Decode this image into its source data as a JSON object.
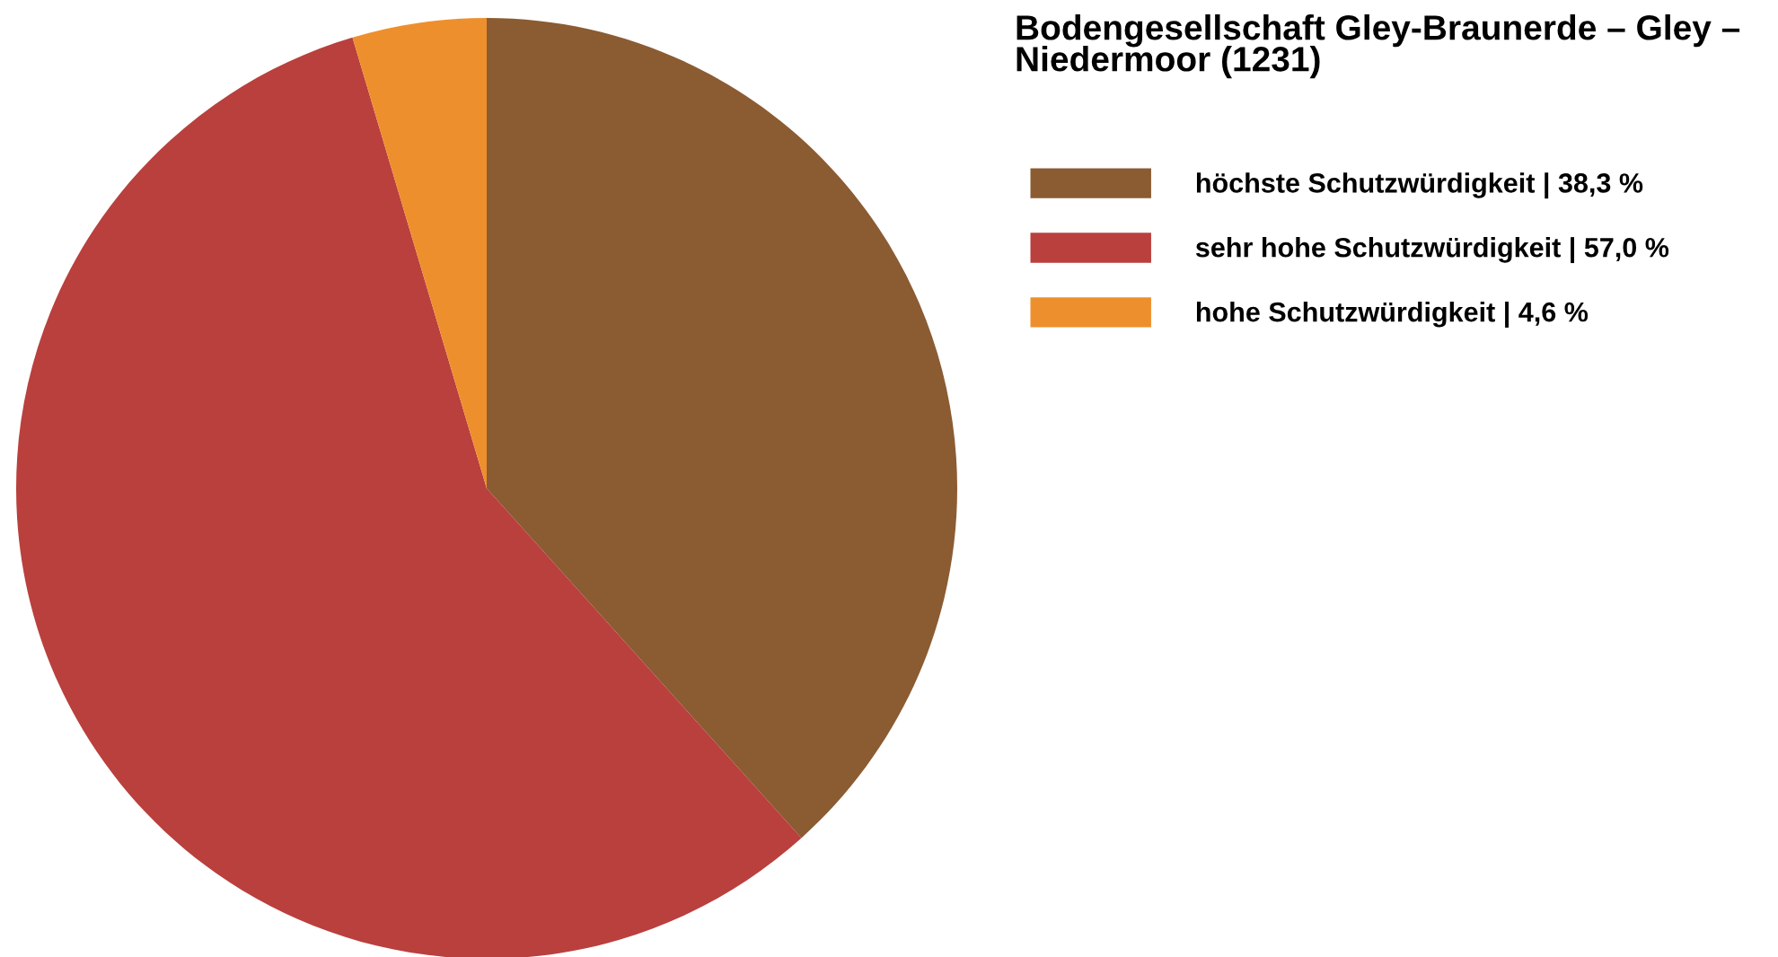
{
  "chart_data": {
    "type": "pie",
    "title": "Bodengesellschaft Gley-Braunerde – Gley – Niedermoor (1231)",
    "categories": [
      "höchste Schutzwürdigkeit | 38,3 %",
      "sehr hohe Schutzwürdigkeit | 57,0 %",
      "hohe Schutzwürdigkeit | 4,6 %"
    ],
    "values": [
      38.3,
      57.0,
      4.6
    ],
    "colors": [
      "#8b5b32",
      "#b9403d",
      "#ee8f2e"
    ],
    "legend": "right"
  }
}
